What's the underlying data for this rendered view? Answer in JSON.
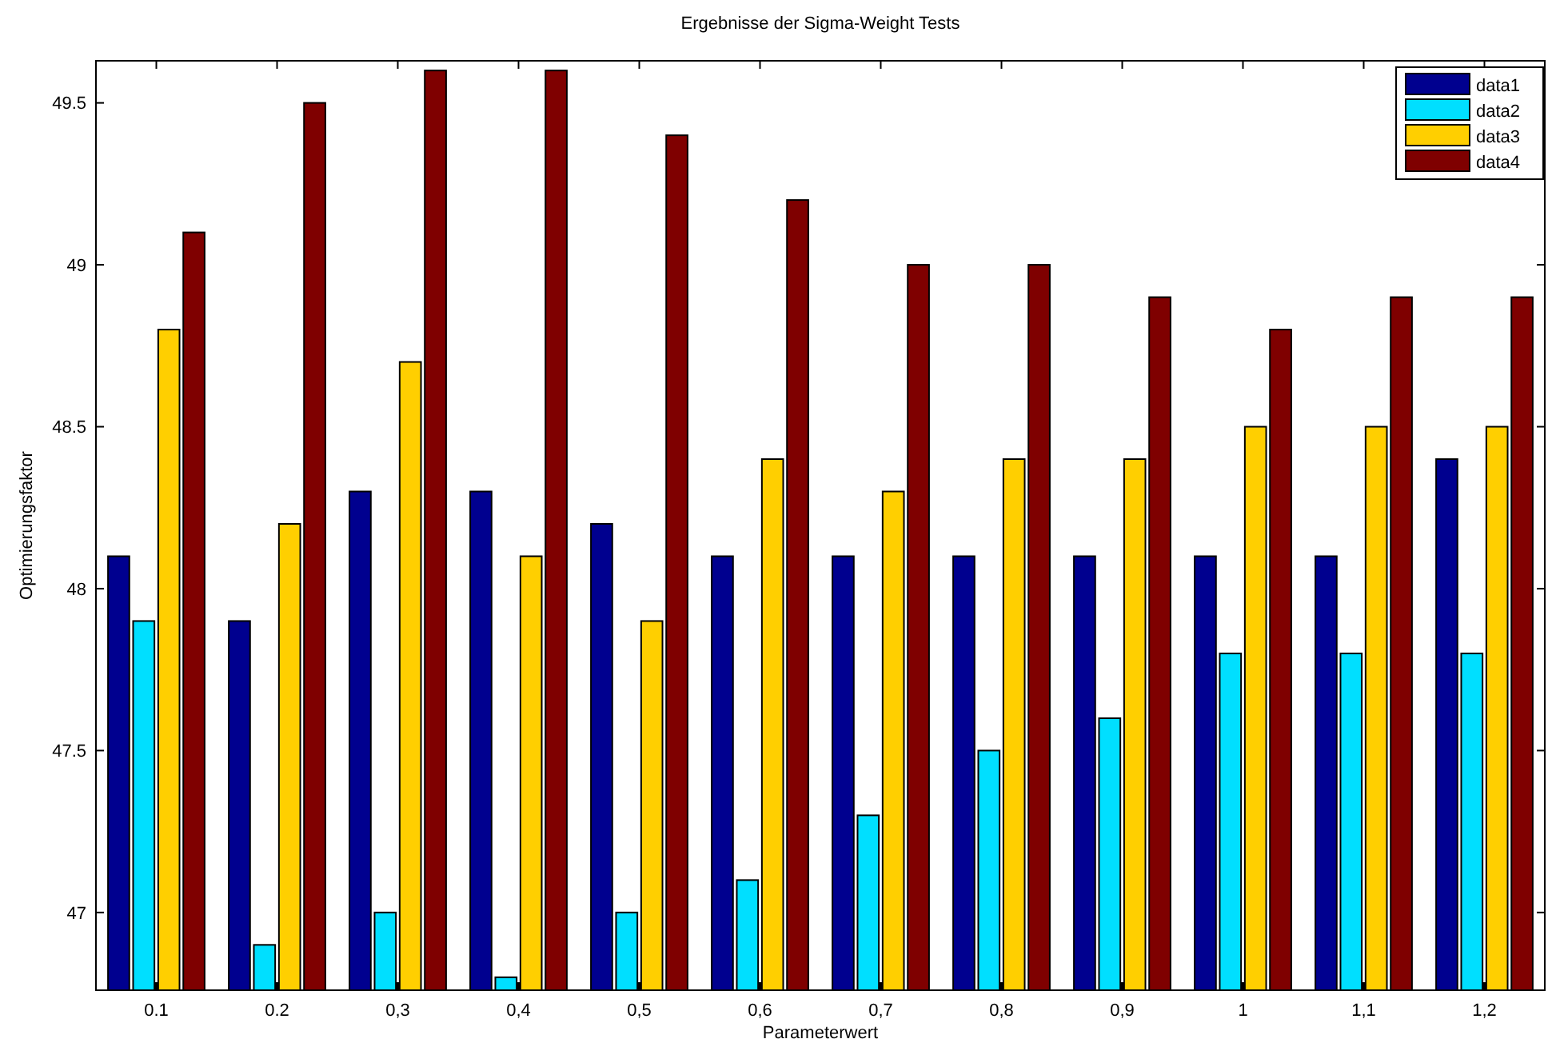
{
  "chart_data": {
    "type": "bar",
    "title": "Ergebnisse der Sigma-Weight Tests",
    "xlabel": "Parameterwert",
    "ylabel": "Optimierungsfaktor",
    "categories": [
      "0.1",
      "0.2",
      "0,3",
      "0,4",
      "0,5",
      "0,6",
      "0,7",
      "0,8",
      "0,9",
      "1",
      "1,1",
      "1,2"
    ],
    "series": [
      {
        "name": "data1",
        "color": "#00008f",
        "values": [
          48.1,
          47.9,
          48.3,
          48.3,
          48.2,
          48.1,
          48.1,
          48.1,
          48.1,
          48.1,
          48.1,
          48.4
        ]
      },
      {
        "name": "data2",
        "color": "#00dfff",
        "values": [
          47.9,
          46.9,
          47.0,
          46.8,
          47.0,
          47.1,
          47.3,
          47.5,
          47.6,
          47.8,
          47.8,
          47.8
        ]
      },
      {
        "name": "data3",
        "color": "#ffcf00",
        "values": [
          48.8,
          48.2,
          48.7,
          48.1,
          47.9,
          48.4,
          48.3,
          48.4,
          48.4,
          48.5,
          48.5,
          48.5
        ]
      },
      {
        "name": "data4",
        "color": "#7f0000",
        "values": [
          49.1,
          49.5,
          49.6,
          49.6,
          49.4,
          49.2,
          49.0,
          49.0,
          48.9,
          48.8,
          48.9,
          48.9
        ]
      }
    ],
    "ylim": [
      46.76,
      49.63
    ],
    "yticks": [
      47,
      47.5,
      48,
      48.5,
      49,
      49.5
    ],
    "legend": "top right"
  }
}
